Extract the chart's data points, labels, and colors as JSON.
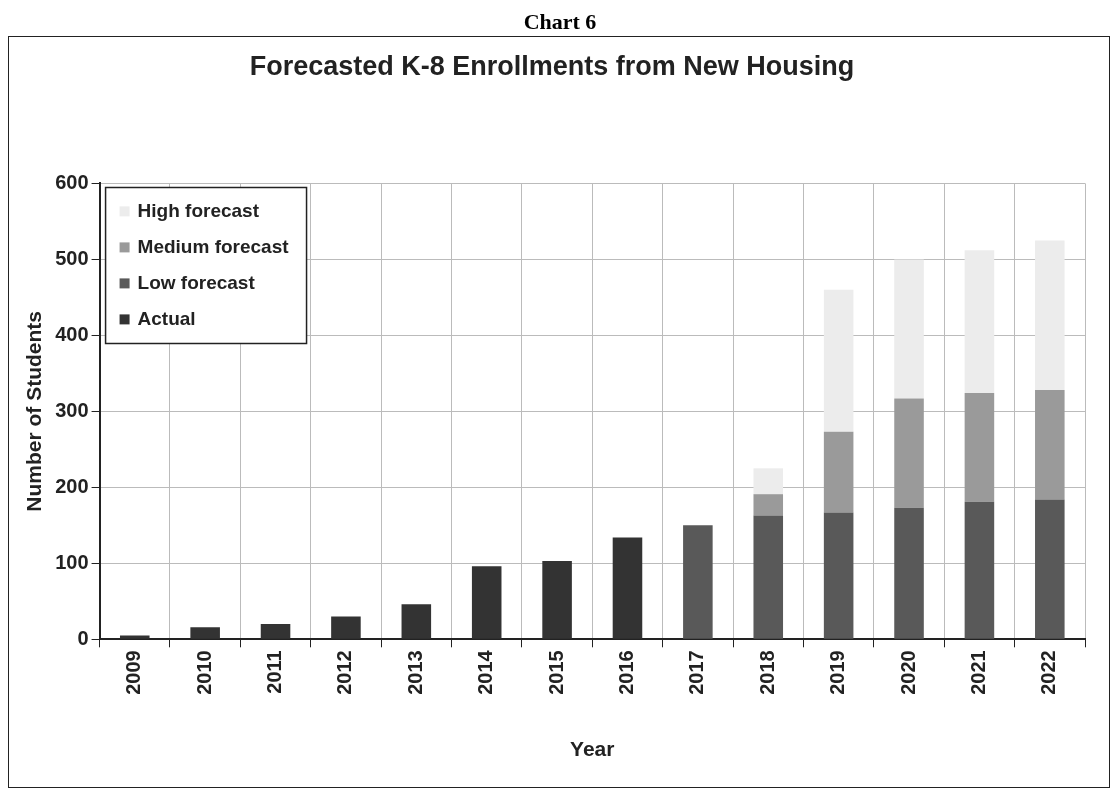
{
  "chart_data": {
    "type": "bar",
    "title": "Forecasted K-8 Enrollments from New Housing",
    "xlabel": "Year",
    "ylabel": "Number of Students",
    "annotations": [
      "Chart 6"
    ],
    "categories": [
      "2009",
      "2010",
      "2011",
      "2012",
      "2013",
      "2014",
      "2015",
      "2016",
      "2017",
      "2018",
      "2019",
      "2020",
      "2021",
      "2022"
    ],
    "stacked": true,
    "series": [
      {
        "name": "Actual",
        "color": "#333333",
        "values": [
          5,
          16,
          20,
          30,
          46,
          96,
          103,
          134,
          null,
          null,
          null,
          null,
          null,
          null
        ]
      },
      {
        "name": "Low forecast",
        "color": "#595959",
        "values": [
          null,
          null,
          null,
          null,
          null,
          null,
          null,
          null,
          150,
          163,
          167,
          173,
          181,
          184
        ]
      },
      {
        "name": "Medium forecast",
        "color": "#9a9a9a",
        "values": [
          null,
          null,
          null,
          null,
          null,
          null,
          null,
          null,
          null,
          28,
          106,
          144,
          143,
          144
        ]
      },
      {
        "name": "High forecast",
        "color": "#ececec",
        "values": [
          null,
          null,
          null,
          null,
          null,
          null,
          null,
          null,
          null,
          34,
          187,
          183,
          188,
          197
        ]
      }
    ],
    "ylim": [
      0,
      600
    ],
    "yticks": [
      0,
      100,
      200,
      300,
      400,
      500,
      600
    ],
    "grid": true,
    "legend": "top left"
  }
}
